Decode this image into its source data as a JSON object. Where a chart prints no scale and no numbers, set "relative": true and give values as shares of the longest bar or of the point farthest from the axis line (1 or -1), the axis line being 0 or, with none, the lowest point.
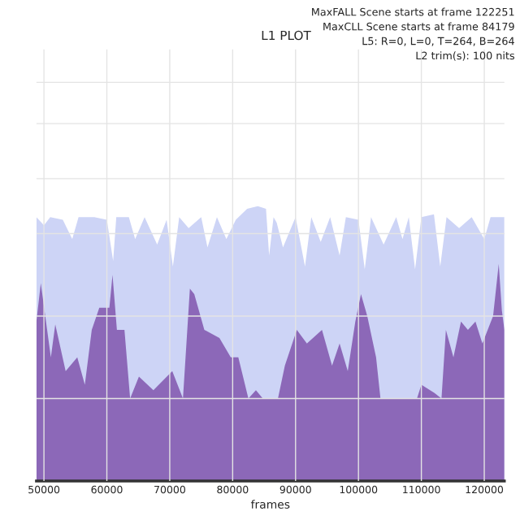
{
  "chart_data": {
    "type": "area",
    "title": "L1 PLOT",
    "xlabel": "frames",
    "relative": true,
    "annotations": [
      "MaxFALL Scene starts at frame 122251",
      "MaxCLL Scene starts at frame 84179",
      "L5: R=0, L=0, T=264, B=264",
      "L2 trim(s): 100 nits"
    ],
    "xlim": [
      48800,
      123200
    ],
    "xticks": [
      50000,
      60000,
      70000,
      80000,
      90000,
      100000,
      110000,
      120000
    ],
    "grid": true,
    "legend": false,
    "series": [
      {
        "color": "#cdd4f6",
        "x": [
          48800,
          50000,
          51000,
          53000,
          54500,
          55500,
          58000,
          60000,
          61000,
          61500,
          63500,
          64500,
          66000,
          68000,
          69500,
          70500,
          71500,
          73000,
          75000,
          76000,
          77500,
          79000,
          80500,
          82300,
          84000,
          85300,
          85800,
          86500,
          87000,
          88000,
          90000,
          91500,
          92500,
          94000,
          95500,
          97000,
          98000,
          100000,
          101000,
          102000,
          104000,
          106000,
          107000,
          108000,
          109000,
          110000,
          112000,
          113000,
          114000,
          116000,
          118000,
          120000,
          121000,
          123200
        ],
        "values": [
          0.96,
          0.93,
          0.96,
          0.95,
          0.88,
          0.96,
          0.96,
          0.95,
          0.8,
          0.96,
          0.96,
          0.88,
          0.96,
          0.86,
          0.95,
          0.78,
          0.96,
          0.92,
          0.96,
          0.85,
          0.96,
          0.88,
          0.95,
          0.99,
          1,
          0.99,
          0.82,
          0.96,
          0.94,
          0.85,
          0.96,
          0.78,
          0.96,
          0.87,
          0.96,
          0.82,
          0.96,
          0.95,
          0.77,
          0.96,
          0.86,
          0.96,
          0.88,
          0.96,
          0.77,
          0.96,
          0.97,
          0.78,
          0.96,
          0.92,
          0.96,
          0.88,
          0.96,
          0.96
        ]
      },
      {
        "color": "#8c68b8",
        "x": [
          48800,
          49500,
          51100,
          51800,
          53450,
          55300,
          56500,
          57600,
          58800,
          60400,
          60900,
          61600,
          62800,
          63700,
          65100,
          67400,
          70400,
          72100,
          73200,
          73900,
          75500,
          77900,
          79700,
          80900,
          82500,
          83700,
          84800,
          87200,
          88300,
          90200,
          91800,
          94200,
          95800,
          97000,
          98300,
          99500,
          100400,
          101400,
          102800,
          103500,
          109300,
          110000,
          112100,
          113200,
          113900,
          115100,
          116300,
          117400,
          118600,
          119700,
          121400,
          122300,
          122800,
          123200
        ],
        "values": [
          0.58,
          0.72,
          0.45,
          0.57,
          0.4,
          0.45,
          0.35,
          0.55,
          0.63,
          0.63,
          0.75,
          0.55,
          0.55,
          0.3,
          0.38,
          0.33,
          0.4,
          0.3,
          0.7,
          0.68,
          0.55,
          0.52,
          0.45,
          0.45,
          0.3,
          0.33,
          0.3,
          0.3,
          0.42,
          0.55,
          0.5,
          0.55,
          0.42,
          0.5,
          0.4,
          0.58,
          0.68,
          0.6,
          0.45,
          0.3,
          0.3,
          0.35,
          0.32,
          0.3,
          0.55,
          0.45,
          0.58,
          0.55,
          0.58,
          0.5,
          0.6,
          0.79,
          0.62,
          0.55
        ]
      }
    ]
  }
}
